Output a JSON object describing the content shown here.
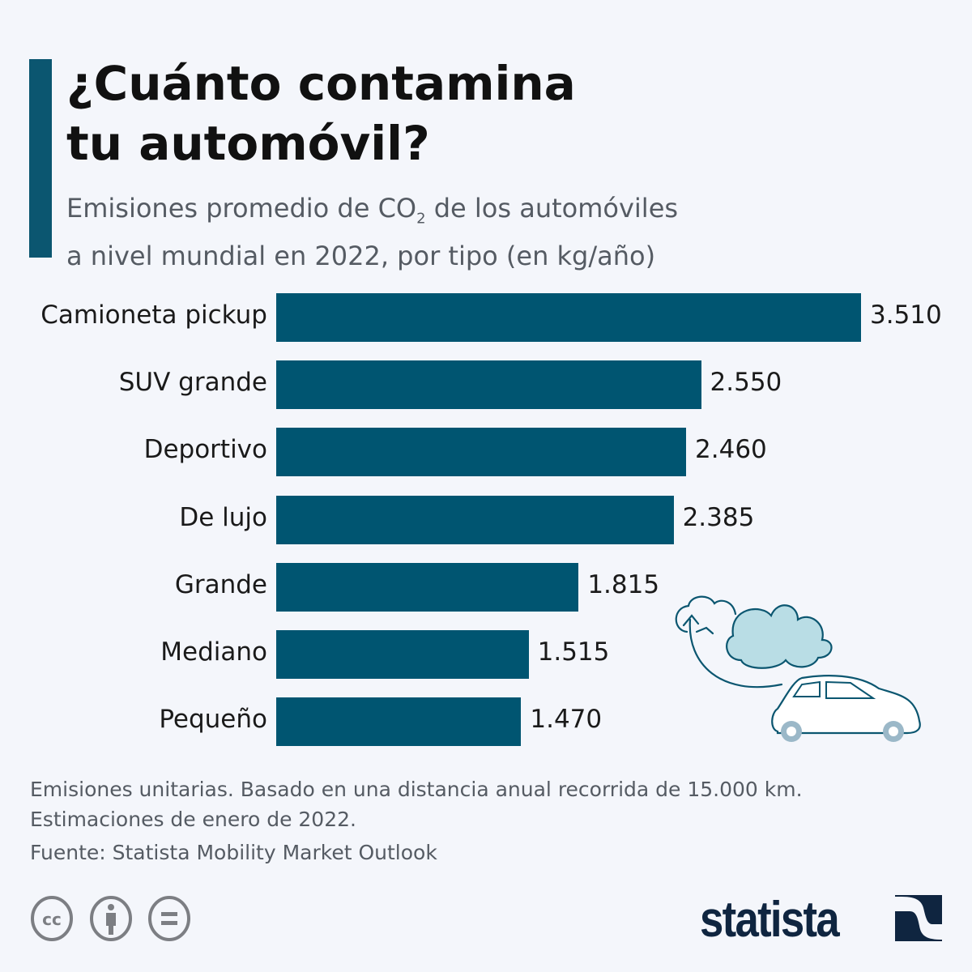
{
  "header": {
    "title_line1": "¿Cuánto contamina",
    "title_line2": "tu automóvil?",
    "subtitle_a": "Emisiones promedio de CO",
    "subtitle_sub": "2",
    "subtitle_b": " de los automóviles",
    "subtitle_line2": "a nivel mundial en 2022, por tipo (en kg/año)"
  },
  "chart_data": {
    "type": "bar",
    "orientation": "horizontal",
    "categories": [
      "Camioneta pickup",
      "SUV grande",
      "Deportivo",
      "De lujo",
      "Grande",
      "Mediano",
      "Pequeño"
    ],
    "values": [
      3510,
      2550,
      2460,
      2385,
      1815,
      1515,
      1470
    ],
    "value_labels": [
      "3.510",
      "2.550",
      "2.460",
      "2.385",
      "1.815",
      "1.515",
      "1.470"
    ],
    "bar_color": "#005571",
    "unit": "kg/año",
    "grid": false
  },
  "footer": {
    "note1": "Emisiones unitarias. Basado en una distancia anual recorrida de 15.000 km.",
    "note2": "Estimaciones de enero de 2022.",
    "source": "Fuente: Statista Mobility Market Outlook",
    "brand": "statista",
    "license_icons": [
      "cc-icon",
      "attribution-icon",
      "no-derivatives-icon"
    ]
  }
}
